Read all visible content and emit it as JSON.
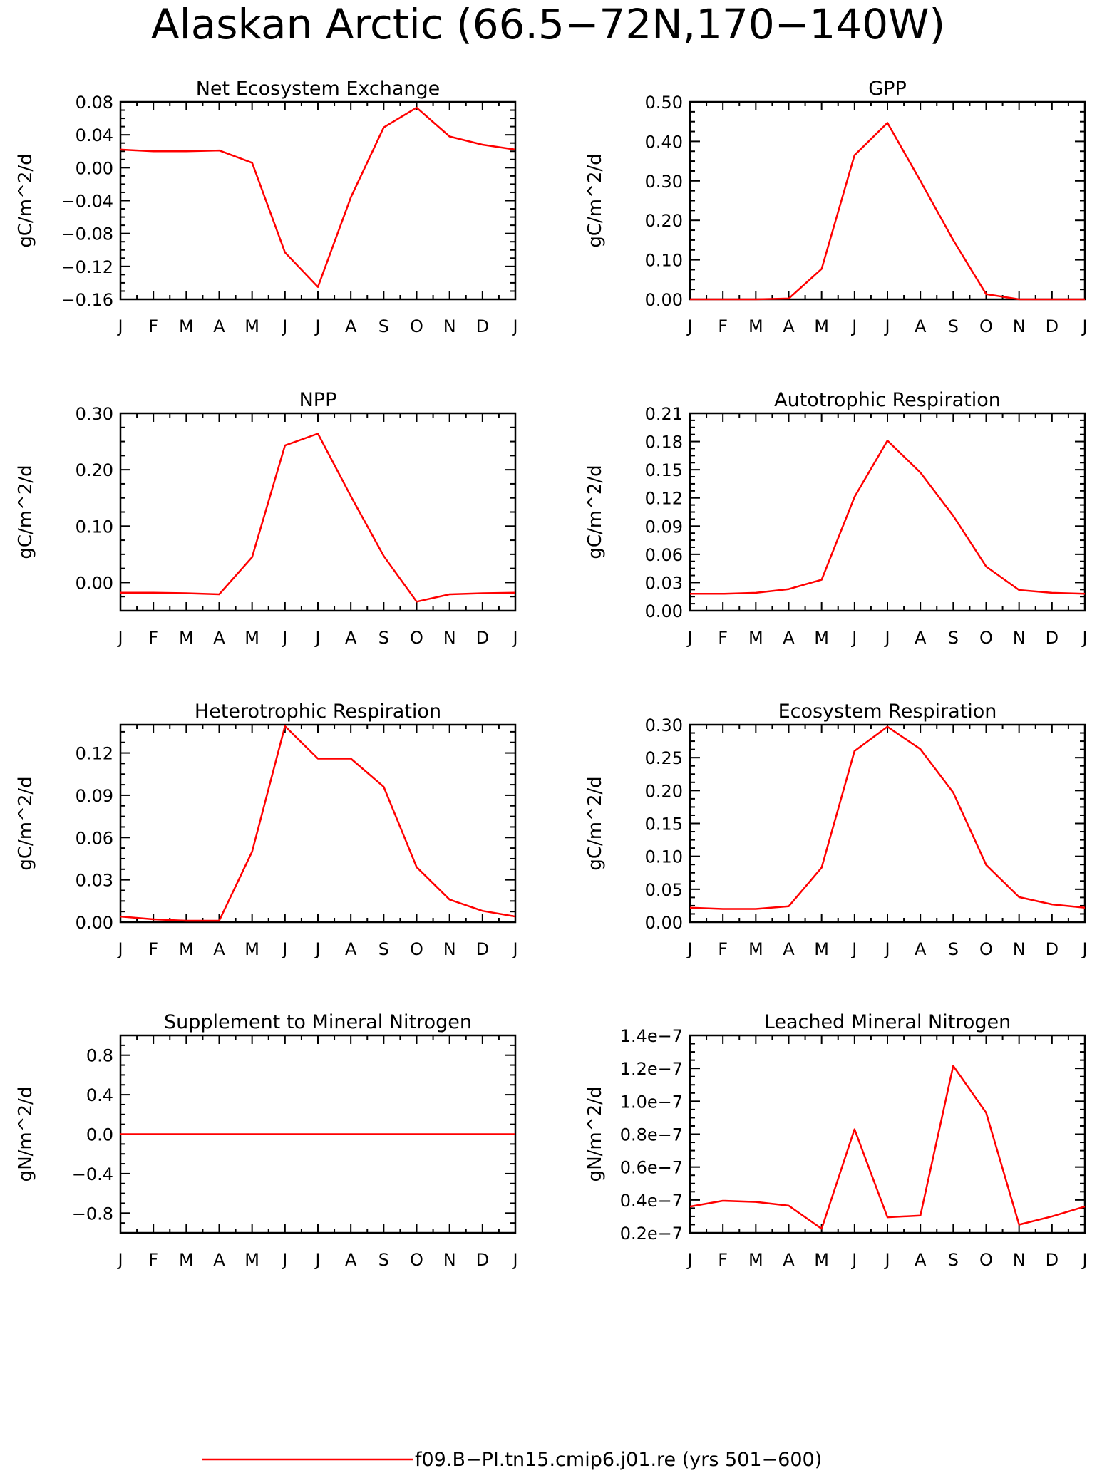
{
  "title": "Alaskan Arctic (66.5−72N,170−140W)",
  "months": [
    "J",
    "F",
    "M",
    "A",
    "M",
    "J",
    "J",
    "A",
    "S",
    "O",
    "N",
    "D",
    "J"
  ],
  "legend": {
    "label": "f09.B−PI.tn15.cmip6.j01.re (yrs 501−600)",
    "color": "#ff0000"
  },
  "line_color": "#ff0000",
  "chart_data": [
    {
      "type": "line",
      "title": "Net Ecosystem Exchange",
      "ylabel": "gC/m^2/d",
      "ylim": [
        -0.16,
        0.08
      ],
      "yticks": [
        0.08,
        0.04,
        0.0,
        -0.04,
        -0.08,
        -0.12,
        -0.16
      ],
      "ytick_labels": [
        "0.08",
        "0.04",
        "0.00",
        "−0.04",
        "−0.08",
        "−0.12",
        "−0.16"
      ],
      "series": [
        {
          "values": [
            0.022,
            0.02,
            0.02,
            0.021,
            0.006,
            -0.103,
            -0.145,
            -0.036,
            0.049,
            0.073,
            0.038,
            0.028,
            0.022
          ]
        }
      ]
    },
    {
      "type": "line",
      "title": "GPP",
      "ylabel": "gC/m^2/d",
      "ylim": [
        0.0,
        0.5
      ],
      "yticks": [
        0.5,
        0.4,
        0.3,
        0.2,
        0.1,
        0.0
      ],
      "ytick_labels": [
        "0.50",
        "0.40",
        "0.30",
        "0.20",
        "0.10",
        "0.00"
      ],
      "series": [
        {
          "values": [
            0.0,
            0.0,
            0.0,
            0.002,
            0.077,
            0.365,
            0.447,
            0.3,
            0.15,
            0.013,
            0.0,
            0.0,
            0.0
          ]
        }
      ]
    },
    {
      "type": "line",
      "title": "NPP",
      "ylabel": "gC/m^2/d",
      "ylim": [
        -0.05,
        0.3
      ],
      "yticks": [
        0.3,
        0.2,
        0.1,
        0.0
      ],
      "ytick_labels": [
        "0.30",
        "0.20",
        "0.10",
        "0.00"
      ],
      "series": [
        {
          "values": [
            -0.018,
            -0.018,
            -0.019,
            -0.021,
            0.045,
            0.243,
            0.264,
            0.153,
            0.047,
            -0.034,
            -0.021,
            -0.019,
            -0.018
          ]
        }
      ]
    },
    {
      "type": "line",
      "title": "Autotrophic Respiration",
      "ylabel": "gC/m^2/d",
      "ylim": [
        0.0,
        0.21
      ],
      "yticks": [
        0.21,
        0.18,
        0.15,
        0.12,
        0.09,
        0.06,
        0.03,
        0.0
      ],
      "ytick_labels": [
        "0.21",
        "0.18",
        "0.15",
        "0.12",
        "0.09",
        "0.06",
        "0.03",
        "0.00"
      ],
      "series": [
        {
          "values": [
            0.018,
            0.018,
            0.019,
            0.023,
            0.033,
            0.121,
            0.181,
            0.147,
            0.101,
            0.047,
            0.022,
            0.019,
            0.018
          ]
        }
      ]
    },
    {
      "type": "line",
      "title": "Heterotrophic Respiration",
      "ylabel": "gC/m^2/d",
      "ylim": [
        0.0,
        0.14
      ],
      "yticks": [
        0.12,
        0.09,
        0.06,
        0.03,
        0.0
      ],
      "ytick_labels": [
        "0.12",
        "0.09",
        "0.06",
        "0.03",
        "0.00"
      ],
      "series": [
        {
          "values": [
            0.004,
            0.002,
            0.001,
            0.001,
            0.05,
            0.139,
            0.116,
            0.116,
            0.096,
            0.039,
            0.016,
            0.008,
            0.004
          ]
        }
      ]
    },
    {
      "type": "line",
      "title": "Ecosystem Respiration",
      "ylabel": "gC/m^2/d",
      "ylim": [
        0.0,
        0.3
      ],
      "yticks": [
        0.3,
        0.25,
        0.2,
        0.15,
        0.1,
        0.05,
        0.0
      ],
      "ytick_labels": [
        "0.30",
        "0.25",
        "0.20",
        "0.15",
        "0.10",
        "0.05",
        "0.00"
      ],
      "series": [
        {
          "values": [
            0.022,
            0.02,
            0.02,
            0.024,
            0.083,
            0.26,
            0.297,
            0.263,
            0.197,
            0.087,
            0.038,
            0.027,
            0.022
          ]
        }
      ]
    },
    {
      "type": "line",
      "title": "Supplement to Mineral Nitrogen",
      "ylabel": "gN/m^2/d",
      "ylim": [
        -1.0,
        1.0
      ],
      "yticks": [
        0.8,
        0.4,
        0.0,
        -0.4,
        -0.8
      ],
      "ytick_labels": [
        "0.8",
        "0.4",
        "0.0",
        "−0.4",
        "−0.8"
      ],
      "series": [
        {
          "values": [
            0,
            0,
            0,
            0,
            0,
            0,
            0,
            0,
            0,
            0,
            0,
            0,
            0
          ]
        }
      ]
    },
    {
      "type": "line",
      "title": "Leached Mineral Nitrogen",
      "ylabel": "gN/m^2/d",
      "ylim": [
        2e-08,
        1.4e-07
      ],
      "yticks": [
        1.4e-07,
        1.2e-07,
        1e-07,
        8e-08,
        6e-08,
        4e-08,
        2e-08
      ],
      "ytick_labels": [
        "1.4e−7",
        "1.2e−7",
        "1.0e−7",
        "0.8e−7",
        "0.6e−7",
        "0.4e−7",
        "0.2e−7"
      ],
      "series": [
        {
          "values": [
            3.6e-08,
            3.95e-08,
            3.88e-08,
            3.65e-08,
            2.25e-08,
            8.3e-08,
            2.95e-08,
            3.05e-08,
            1.215e-07,
            9.3e-08,
            2.5e-08,
            3e-08,
            3.6e-08
          ]
        }
      ]
    }
  ]
}
